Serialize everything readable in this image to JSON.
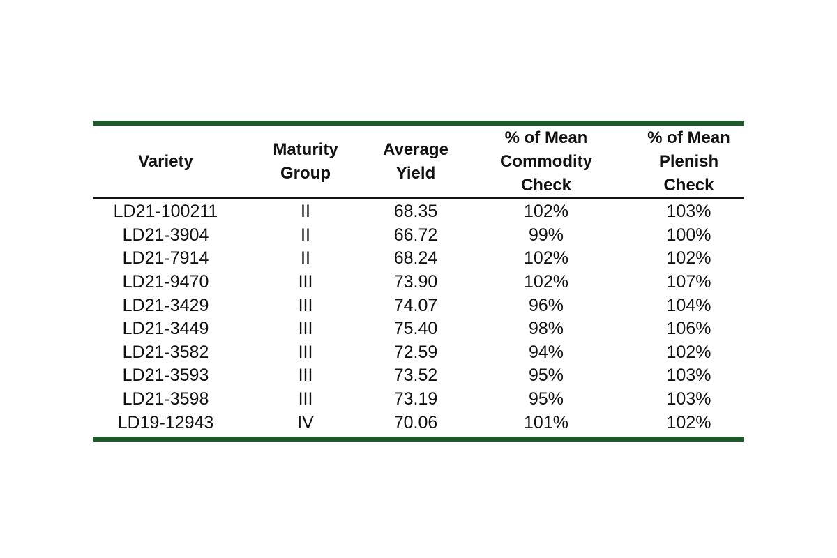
{
  "table": {
    "headers": [
      "Variety",
      "Maturity\nGroup",
      "Average\nYield",
      "% of Mean\nCommodity\nCheck",
      "% of Mean\nPlenish\nCheck"
    ],
    "rows": [
      [
        "LD21-100211",
        "II",
        "68.35",
        "102%",
        "103%"
      ],
      [
        "LD21-3904",
        "II",
        "66.72",
        "99%",
        "100%"
      ],
      [
        "LD21-7914",
        "II",
        "68.24",
        "102%",
        "102%"
      ],
      [
        "LD21-9470",
        "III",
        "73.90",
        "102%",
        "107%"
      ],
      [
        "LD21-3429",
        "III",
        "74.07",
        "96%",
        "104%"
      ],
      [
        "LD21-3449",
        "III",
        "75.40",
        "98%",
        "106%"
      ],
      [
        "LD21-3582",
        "III",
        "72.59",
        "94%",
        "102%"
      ],
      [
        "LD21-3593",
        "III",
        "73.52",
        "95%",
        "103%"
      ],
      [
        "LD21-3598",
        "III",
        "73.19",
        "95%",
        "103%"
      ],
      [
        "LD19-12943",
        "IV",
        "70.06",
        "101%",
        "102%"
      ]
    ],
    "rule_color": "#1e5a2a"
  }
}
